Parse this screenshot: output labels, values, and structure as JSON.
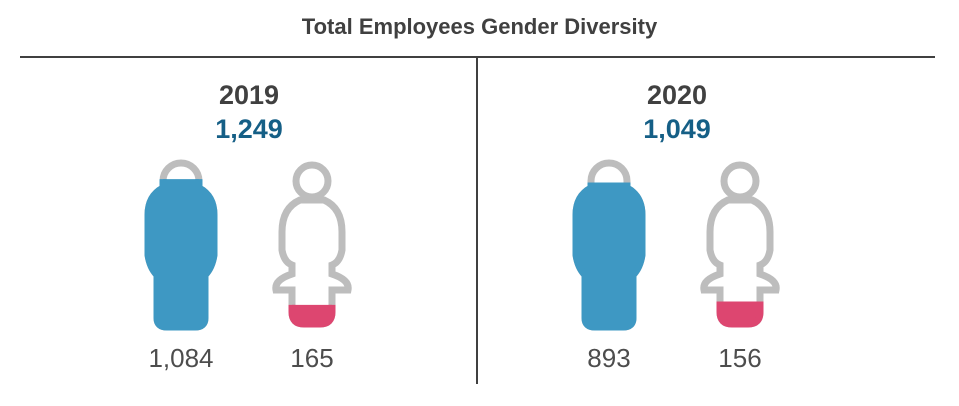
{
  "title": "Total Employees Gender Diversity",
  "colors": {
    "male": "#3e98c3",
    "female": "#dd4670",
    "outline": "#bdbdbd",
    "total": "#155f86"
  },
  "chart_data": {
    "type": "pictograph",
    "title": "Total Employees Gender Diversity",
    "panels": [
      {
        "year": "2019",
        "total": "1,249",
        "groups": [
          {
            "icon": "male-icon",
            "label": "1,084",
            "value": 1084,
            "fill_fraction": 0.87
          },
          {
            "icon": "female-icon",
            "label": "165",
            "value": 165,
            "fill_fraction": 0.13
          }
        ]
      },
      {
        "year": "2020",
        "total": "1,049",
        "groups": [
          {
            "icon": "male-icon",
            "label": "893",
            "value": 893,
            "fill_fraction": 0.85
          },
          {
            "icon": "female-icon",
            "label": "156",
            "value": 156,
            "fill_fraction": 0.15
          }
        ]
      }
    ]
  }
}
